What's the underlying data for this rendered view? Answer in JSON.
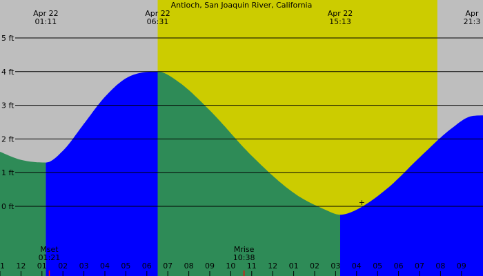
{
  "chart_data": {
    "type": "area",
    "title": "Antioch, San Joaquin River, California",
    "xlabel": "",
    "ylabel": "",
    "x_unit": "hour of day",
    "ylim": [
      -1.6,
      6.1
    ],
    "grid": true,
    "y_ticks": [
      {
        "value": 0,
        "label": "0 ft"
      },
      {
        "value": 1,
        "label": "1 ft"
      },
      {
        "value": 2,
        "label": "2 ft"
      },
      {
        "value": 3,
        "label": "3 ft"
      },
      {
        "value": 4,
        "label": "4 ft"
      },
      {
        "value": 5,
        "label": "5 ft"
      }
    ],
    "x_ticks": [
      {
        "hour": -1,
        "label": "11"
      },
      {
        "hour": 0,
        "label": "12"
      },
      {
        "hour": 1,
        "label": "01"
      },
      {
        "hour": 2,
        "label": "02"
      },
      {
        "hour": 3,
        "label": "03"
      },
      {
        "hour": 4,
        "label": "04"
      },
      {
        "hour": 5,
        "label": "05"
      },
      {
        "hour": 6,
        "label": "06"
      },
      {
        "hour": 7,
        "label": "07"
      },
      {
        "hour": 8,
        "label": "08"
      },
      {
        "hour": 9,
        "label": "09"
      },
      {
        "hour": 10,
        "label": "10"
      },
      {
        "hour": 11,
        "label": "11"
      },
      {
        "hour": 12,
        "label": "12"
      },
      {
        "hour": 13,
        "label": "01"
      },
      {
        "hour": 14,
        "label": "02"
      },
      {
        "hour": 15,
        "label": "03"
      },
      {
        "hour": 16,
        "label": "04"
      },
      {
        "hour": 17,
        "label": "05"
      },
      {
        "hour": 18,
        "label": "06"
      },
      {
        "hour": 19,
        "label": "07"
      },
      {
        "hour": 20,
        "label": "08"
      },
      {
        "hour": 21,
        "label": "09"
      }
    ],
    "daylight": {
      "sunrise_hour": 6.517,
      "sunset_hour": 19.85
    },
    "extremes": [
      {
        "type": "low",
        "hour": 1.183,
        "height": 1.3,
        "date_label": "Apr 22",
        "time_label": "01:11"
      },
      {
        "type": "high",
        "hour": 6.517,
        "height": 4.0,
        "date_label": "Apr 22",
        "time_label": "06:31"
      },
      {
        "type": "low",
        "hour": 15.217,
        "height": -0.25,
        "date_label": "Apr 22",
        "time_label": "15:13"
      },
      {
        "type": "high",
        "hour": 21.5,
        "height": 2.7,
        "date_label": "Apr",
        "time_label": "21:3"
      }
    ],
    "tide_series": {
      "name": "",
      "x": [
        -2.07,
        -1,
        0,
        1.183,
        2,
        3,
        4,
        5,
        6,
        6.517,
        7.5,
        9,
        11,
        13,
        14.5,
        15.217,
        16,
        17.5,
        19,
        20.5,
        21.5,
        22.07
      ],
      "y": [
        1.92,
        1.62,
        1.38,
        1.3,
        1.65,
        2.45,
        3.25,
        3.8,
        3.99,
        4.0,
        3.7,
        2.85,
        1.5,
        0.4,
        -0.1,
        -0.25,
        -0.1,
        0.55,
        1.45,
        2.3,
        2.68,
        2.7
      ]
    },
    "colors": {
      "night_background": "#bebebe",
      "day_background": "#cccc00",
      "falling_tide": "#2e8b57",
      "rising_tide": "#0000ff",
      "gridline": "#000000",
      "moon_marker": "#ff0000"
    },
    "events": [
      {
        "label": "Mset",
        "time": "01:21",
        "hour": 1.35
      },
      {
        "label": "Mrise",
        "time": "10:38",
        "hour": 10.633
      }
    ],
    "annotations": [
      {
        "text": "+",
        "hour": 16.25,
        "height": 0.0
      }
    ]
  }
}
